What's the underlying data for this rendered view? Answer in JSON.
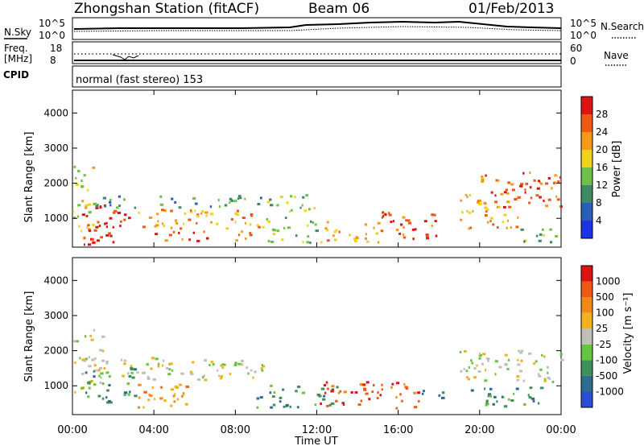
{
  "header": {
    "station": "Zhongshan Station (fitACF)",
    "beam": "Beam 06",
    "date": "01/Feb/2013"
  },
  "noise_panel": {
    "left_label": "N.Sky",
    "left_ticks": [
      "10^5",
      "10^0"
    ],
    "right_ticks": [
      "10^5",
      "10^0"
    ],
    "right_label": "N.Search"
  },
  "freq_panel": {
    "left_label_1": "Freq.",
    "left_label_2": "[MHz]",
    "left_ticks": [
      "18",
      "8"
    ],
    "right_ticks": [
      "60",
      "0"
    ],
    "right_label": "Nave"
  },
  "cpid_panel": {
    "label": "CPID",
    "text": "normal (fast stereo) 153"
  },
  "chart_data": [
    {
      "type": "heatmap",
      "name": "power",
      "ylabel": "Slant Range [km]",
      "xlabel": "Time UT",
      "x_ticks": [
        "00:00",
        "04:00",
        "08:00",
        "12:00",
        "16:00",
        "20:00",
        "00:00"
      ],
      "y_ticks": [
        "1000",
        "2000",
        "3000",
        "4000"
      ],
      "ylim": [
        180,
        4650
      ],
      "colorbar_label": "Power [dB]",
      "colorbar_ticks": [
        "4",
        "8",
        "12",
        "16",
        "20",
        "24",
        "28"
      ],
      "colorbar_colors": [
        "#1e32e6",
        "#2a5fb8",
        "#3e8a62",
        "#6fc04a",
        "#f2d21b",
        "#f59a16",
        "#ee5a12",
        "#dd1414"
      ],
      "regions": [
        {
          "t0": 0.0,
          "t1": 1.0,
          "r0": 400,
          "r1": 2600,
          "level": 4
        },
        {
          "t0": 0.3,
          "t1": 3.0,
          "r0": 250,
          "r1": 1400,
          "level": 7
        },
        {
          "t0": 1.0,
          "t1": 9.5,
          "r0": 1300,
          "r1": 1650,
          "level": 2
        },
        {
          "t0": 3.0,
          "t1": 9.5,
          "r0": 700,
          "r1": 1250,
          "level": 5
        },
        {
          "t0": 4.0,
          "t1": 9.0,
          "r0": 350,
          "r1": 650,
          "level": 6
        },
        {
          "t0": 9.5,
          "t1": 12.0,
          "r0": 300,
          "r1": 1700,
          "level": 3
        },
        {
          "t0": 12.0,
          "t1": 15.0,
          "r0": 300,
          "r1": 900,
          "level": 5
        },
        {
          "t0": 15.0,
          "t1": 18.0,
          "r0": 400,
          "r1": 1200,
          "level": 6
        },
        {
          "t0": 19.0,
          "t1": 22.0,
          "r0": 700,
          "r1": 1700,
          "level": 5
        },
        {
          "t0": 20.0,
          "t1": 24.0,
          "r0": 1300,
          "r1": 2300,
          "level": 6
        },
        {
          "t0": 22.0,
          "t1": 24.0,
          "r0": 300,
          "r1": 700,
          "level": 3
        }
      ]
    },
    {
      "type": "heatmap",
      "name": "velocity",
      "ylabel": "Slant Range [km]",
      "xlabel": "Time UT",
      "x_ticks": [
        "00:00",
        "04:00",
        "08:00",
        "12:00",
        "16:00",
        "20:00",
        "00:00"
      ],
      "y_ticks": [
        "1000",
        "2000",
        "3000",
        "4000"
      ],
      "ylim": [
        180,
        4650
      ],
      "colorbar_label": "Velocity [m s⁻¹]",
      "colorbar_ticks": [
        "1000",
        "500",
        "100",
        "25",
        "-25",
        "-100",
        "-500",
        "-1000"
      ],
      "colorbar_colors": [
        "#2a4fd6",
        "#2f6b8f",
        "#3f8f5a",
        "#66c43e",
        "#c0c0b8",
        "#f2b21c",
        "#f08a14",
        "#ef5a12",
        "#dc1414"
      ],
      "regions": [
        {
          "t0": 0.0,
          "t1": 1.5,
          "r0": 800,
          "r1": 2600,
          "level": 4
        },
        {
          "t0": 1.0,
          "t1": 9.5,
          "r0": 1150,
          "r1": 1800,
          "level": 4
        },
        {
          "t0": 3.0,
          "t1": 6.0,
          "r0": 350,
          "r1": 1100,
          "level": 6
        },
        {
          "t0": 0.5,
          "t1": 3.5,
          "r0": 500,
          "r1": 1500,
          "level": 2
        },
        {
          "t0": 9.0,
          "t1": 13.0,
          "r0": 350,
          "r1": 1000,
          "level": 2
        },
        {
          "t0": 12.0,
          "t1": 17.0,
          "r0": 350,
          "r1": 1100,
          "level": 7
        },
        {
          "t0": 17.0,
          "t1": 18.3,
          "r0": 500,
          "r1": 900,
          "level": 1
        },
        {
          "t0": 19.0,
          "t1": 24.0,
          "r0": 1100,
          "r1": 2000,
          "level": 4
        },
        {
          "t0": 19.5,
          "t1": 23.5,
          "r0": 400,
          "r1": 1000,
          "level": 2
        }
      ]
    }
  ]
}
